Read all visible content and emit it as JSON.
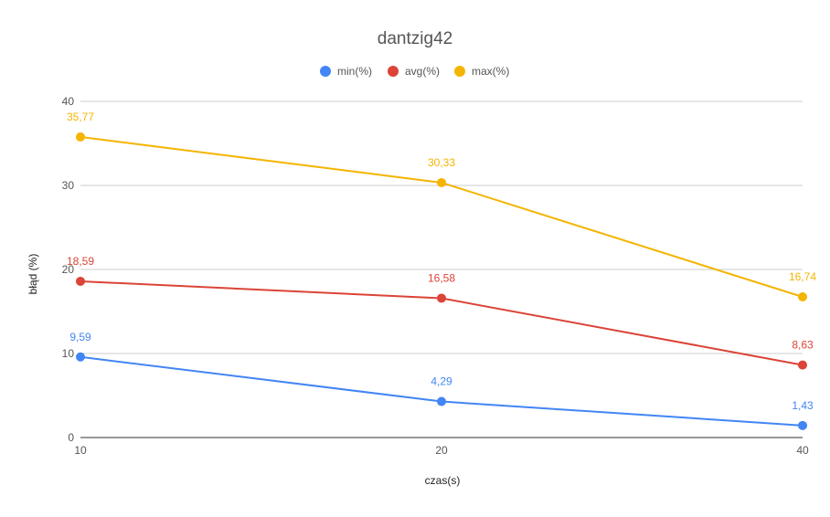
{
  "chart_data": {
    "type": "line",
    "title": "dantzig42",
    "xlabel": "czas(s)",
    "ylabel": "błąd (%)",
    "x": [
      10,
      20,
      40
    ],
    "x_tick_labels": [
      "10",
      "20",
      "40"
    ],
    "ylim": [
      0,
      40
    ],
    "y_ticks": [
      0,
      10,
      20,
      30,
      40
    ],
    "y_tick_labels": [
      "0",
      "10",
      "20",
      "30",
      "40"
    ],
    "grid": true,
    "legend_position": "top",
    "series": [
      {
        "name": "min(%)",
        "color": "#4285f4",
        "values": [
          9.59,
          4.29,
          1.43
        ],
        "labels": [
          "9,59",
          "4,29",
          "1,43"
        ]
      },
      {
        "name": "avg(%)",
        "color": "#db4437",
        "values": [
          18.59,
          16.58,
          8.63
        ],
        "labels": [
          "18,59",
          "16,58",
          "8,63"
        ]
      },
      {
        "name": "max(%)",
        "color": "#f4b400",
        "values": [
          35.77,
          30.33,
          16.74
        ],
        "labels": [
          "35,77",
          "30,33",
          "16,74"
        ]
      }
    ]
  }
}
